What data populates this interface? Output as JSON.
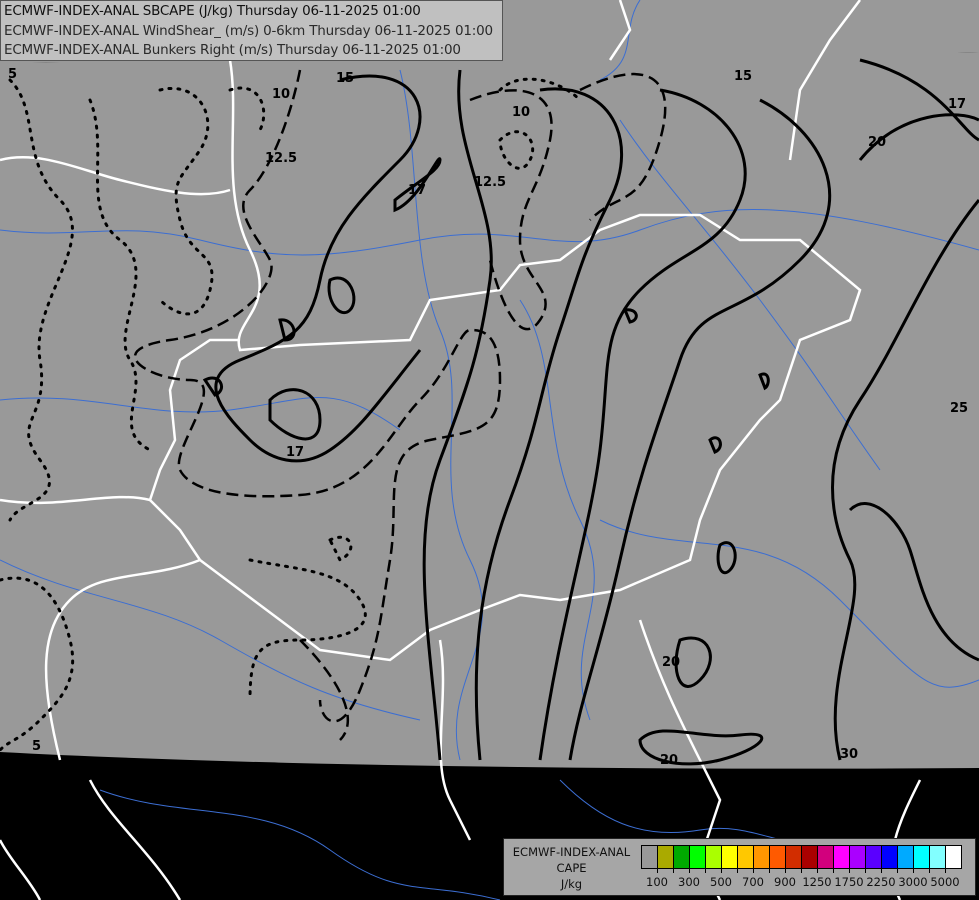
{
  "header": {
    "lines": [
      "ECMWF-INDEX-ANAL SBCAPE (J/kg) Thursday 06-11-2025 01:00",
      "ECMWF-INDEX-ANAL WindShear_ (m/s) 0-6km Thursday 06-11-2025 01:00",
      "ECMWF-INDEX-ANAL Bunkers Right (m/s) Thursday 06-11-2025 01:00"
    ]
  },
  "legend": {
    "title_lines": [
      "ECMWF-INDEX-ANAL",
      "CAPE",
      "J/kg"
    ],
    "colors": [
      "#999999",
      "#aaaa00",
      "#00aa00",
      "#00ff00",
      "#aaff00",
      "#ffff00",
      "#ffc800",
      "#ff9600",
      "#ff5a00",
      "#d22d00",
      "#aa0000",
      "#d2007d",
      "#ff00ff",
      "#aa00ff",
      "#5a00ff",
      "#0000ff",
      "#00aaff",
      "#00ffff",
      "#82ffff",
      "#ffffff"
    ],
    "tick_labels": [
      "100",
      "300",
      "500",
      "700",
      "900",
      "1250",
      "1750",
      "2250",
      "3000",
      "5000"
    ]
  },
  "map": {
    "field_color": "#999999",
    "outside_color": "#000000",
    "border_color": "#ffffff",
    "river_color": "#3c6ed2",
    "contour_labels": [
      "5",
      "10",
      "12.5",
      "15",
      "15",
      "17",
      "17",
      "17",
      "10",
      "12.5",
      "20",
      "25",
      "20",
      "20",
      "30",
      "5"
    ]
  }
}
